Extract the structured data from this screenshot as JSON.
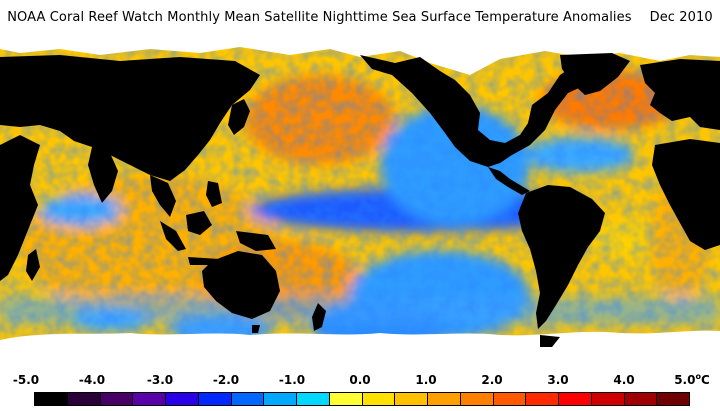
{
  "title": {
    "text": "NOAA Coral Reef Watch Monthly Mean Satellite Nighttime Sea Surface Temperature Anomalies",
    "month": "Dec 2010"
  },
  "legend": {
    "labels": [
      "-5.0",
      "-4.0",
      "-3.0",
      "-2.0",
      "-1.0",
      "0.0",
      "1.0",
      "2.0",
      "3.0",
      "4.0",
      "5.0"
    ],
    "unit_degree": "o",
    "unit_letter": "C",
    "colors": [
      "#000000",
      "#2a0038",
      "#480066",
      "#5a00a8",
      "#2a00e6",
      "#0028ff",
      "#0068ff",
      "#00a8ff",
      "#00d8ff",
      "#ffff33",
      "#ffe000",
      "#ffc000",
      "#ffa000",
      "#ff8000",
      "#ff5a00",
      "#ff2a00",
      "#ff0000",
      "#d00000",
      "#a00000",
      "#700000"
    ]
  },
  "map_colors": {
    "land": "#000000",
    "ice": "#ffffff",
    "ocean_neutral": "#ffd200",
    "ocean_warm": "#ff9a00",
    "ocean_hot": "#ff5a00",
    "ocean_cool": "#28a8ff",
    "ocean_cold": "#1060ff",
    "ocean_colder": "#2020d8"
  }
}
